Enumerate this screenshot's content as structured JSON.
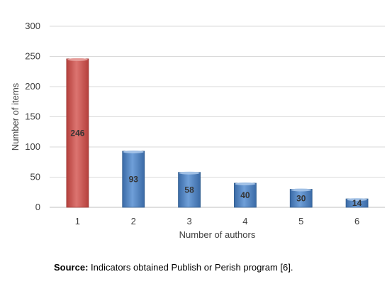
{
  "chart_data": {
    "type": "bar",
    "categories": [
      "1",
      "2",
      "3",
      "4",
      "5",
      "6"
    ],
    "values": [
      246,
      93,
      58,
      40,
      30,
      14
    ],
    "data_labels": [
      "246",
      "93",
      "58",
      "40",
      "30",
      "14"
    ],
    "xlabel": "Number of authors",
    "ylabel": "Number of items",
    "ylim": [
      0,
      300
    ],
    "yticks": [
      "0",
      "50",
      "100",
      "150",
      "200",
      "250",
      "300"
    ],
    "grid": true,
    "legend": "none",
    "colors": {
      "highlight": "#c0504d",
      "highlight_dark": "#9c3532",
      "bar": "#4f81bd",
      "bar_dark": "#2f5b8c",
      "grid": "#d9d9d9",
      "axis": "#bfbfbf"
    }
  },
  "source": {
    "label": "Source:",
    "text": " Indicators obtained Publish or Perish program [6]."
  }
}
